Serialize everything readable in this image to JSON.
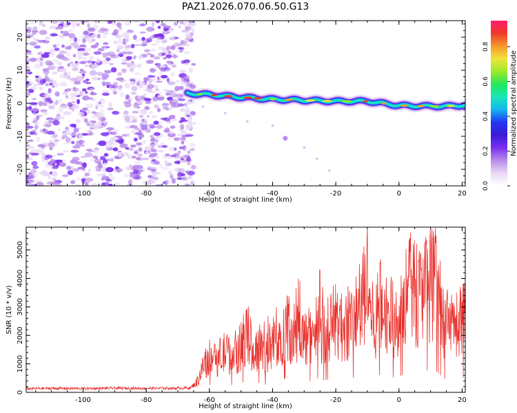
{
  "title": "PAZ1.2026.070.06.50.G13",
  "colors": {
    "line": "#e8322d",
    "frame": "#000000",
    "spectrum_scale": [
      "#ffffff",
      "#e9d9f6",
      "#b88ce8",
      "#7a2ef0",
      "#3b1bd8",
      "#2236f2",
      "#14b6f0",
      "#17e6b8",
      "#22e85a",
      "#9ce92a",
      "#f0e43a",
      "#f59a2c",
      "#ee3a2a",
      "#ff1d6b"
    ]
  },
  "chart_data": [
    {
      "type": "heatmap",
      "xlabel": "Height of straight line (km)",
      "ylabel": "Frequency (Hz)",
      "xlim": [
        -118,
        21
      ],
      "ylim": [
        -25,
        25
      ],
      "xticks": [
        -100,
        -80,
        -60,
        -40,
        -20,
        0,
        20
      ],
      "xtick_labels": [
        "-100",
        "-80",
        "-60",
        "-40",
        "-20",
        "0",
        "20"
      ],
      "yticks": [
        -20,
        -10,
        0,
        10,
        20
      ],
      "ytick_labels": [
        "-20",
        "-10",
        "0",
        "10",
        "20"
      ],
      "noise_region_x": [
        -118,
        -65
      ],
      "signal_track": {
        "x": [
          -67,
          -60,
          -50,
          -40,
          -30,
          -20,
          -10,
          0,
          5,
          10,
          15,
          21
        ],
        "freq": [
          3,
          2.6,
          1.8,
          1.2,
          0.9,
          0.6,
          0.6,
          -0.7,
          -0.8,
          -0.9,
          -0.9,
          -0.6
        ]
      },
      "faint_branch": {
        "x": [
          -62,
          -55,
          -48,
          -40,
          -36,
          -30,
          -26,
          -22
        ],
        "freq": [
          -1,
          -3,
          -5.5,
          -6.8,
          -10.6,
          -13.4,
          -16.8,
          -20.4
        ]
      },
      "colorbar": {
        "label": "Normalized spectral amplitude",
        "range": [
          0,
          0.95
        ],
        "ticks": [
          0,
          0.2,
          0.4,
          0.6,
          0.8
        ],
        "tick_labels": [
          "0.0",
          "0.2",
          "0.4",
          "0.6",
          "0.8"
        ]
      }
    },
    {
      "type": "line",
      "xlabel": "Height of straight line (km)",
      "ylabel": "SNR (10 * v/v)",
      "xlim": [
        -118,
        21
      ],
      "ylim": [
        0,
        5800
      ],
      "xticks": [
        -100,
        -80,
        -60,
        -40,
        -20,
        0,
        20
      ],
      "xtick_labels": [
        "-100",
        "-80",
        "-60",
        "-40",
        "-20",
        "0",
        "20"
      ],
      "yticks": [
        0,
        1000,
        2000,
        3000,
        4000,
        5000
      ],
      "ytick_labels": [
        "0",
        "1000",
        "2000",
        "3000",
        "4000",
        "5000"
      ],
      "series": [
        {
          "name": "SNR",
          "x": [
            -118,
            -110,
            -100,
            -90,
            -80,
            -70,
            -66,
            -64,
            -62,
            -60,
            -58,
            -55,
            -52,
            -50,
            -48,
            -46,
            -44,
            -42,
            -40,
            -38,
            -36,
            -34,
            -32,
            -30,
            -28,
            -26,
            -24,
            -22,
            -20,
            -18,
            -16,
            -14,
            -12,
            -10,
            -8,
            -6,
            -4,
            -2,
            0,
            2,
            4,
            6,
            8,
            10,
            12,
            13,
            14,
            16,
            18,
            20,
            21
          ],
          "y": [
            130,
            140,
            135,
            145,
            140,
            145,
            160,
            350,
            900,
            1300,
            1150,
            1400,
            1250,
            1600,
            2100,
            1400,
            1700,
            1300,
            1850,
            1600,
            2450,
            2100,
            2200,
            1900,
            1950,
            2500,
            2100,
            2250,
            2600,
            2250,
            2350,
            2650,
            3000,
            3700,
            2300,
            3100,
            2750,
            2600,
            2750,
            3300,
            3700,
            3400,
            3900,
            3850,
            3600,
            3100,
            2400,
            2300,
            2450,
            2500,
            2650
          ]
        }
      ]
    }
  ]
}
